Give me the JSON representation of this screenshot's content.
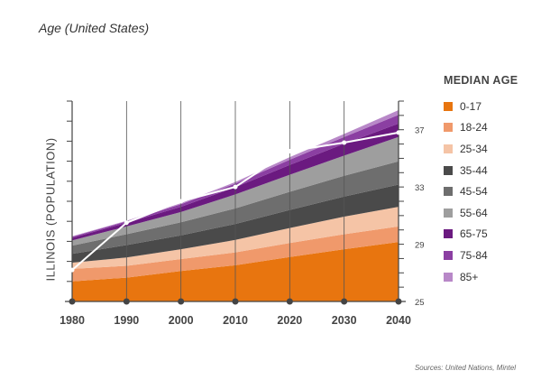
{
  "chart_data": {
    "type": "area",
    "title": "Age (United States)",
    "ylabel": "ILLINOIS (POPULATION)",
    "x": [
      1980,
      1990,
      2000,
      2010,
      2020,
      2030,
      2040
    ],
    "x_tick_labels": [
      "1980",
      "1990",
      "2000",
      "2010",
      "2020",
      "2030",
      "2040"
    ],
    "stacked": true,
    "series": [
      {
        "name": "0-17",
        "color": "#e8750f",
        "values": [
          1.95,
          2.3,
          2.95,
          3.5,
          4.3,
          5.05,
          5.75
        ]
      },
      {
        "name": "18-24",
        "color": "#f0996b",
        "values": [
          1.2,
          1.15,
          1.15,
          1.25,
          1.35,
          1.45,
          1.5
        ]
      },
      {
        "name": "25-34",
        "color": "#f5c4a6",
        "values": [
          0.6,
          0.8,
          0.95,
          1.2,
          1.45,
          1.7,
          1.9
        ]
      },
      {
        "name": "35-44",
        "color": "#4a4a4a",
        "values": [
          0.85,
          1.2,
          1.35,
          1.55,
          1.75,
          1.95,
          2.15
        ]
      },
      {
        "name": "45-54",
        "color": "#6e6e6e",
        "values": [
          0.8,
          1.05,
          1.25,
          1.5,
          1.75,
          2.0,
          2.25
        ]
      },
      {
        "name": "55-64",
        "color": "#9e9e9e",
        "values": [
          0.5,
          0.75,
          1.0,
          1.35,
          1.65,
          1.95,
          2.35
        ]
      },
      {
        "name": "65-75",
        "color": "#6b1a80",
        "values": [
          0.25,
          0.35,
          0.5,
          0.7,
          0.95,
          1.15,
          1.3
        ]
      },
      {
        "name": "75-84",
        "color": "#8b3fa2",
        "values": [
          0.1,
          0.15,
          0.25,
          0.35,
          0.5,
          0.65,
          0.85
        ]
      },
      {
        "name": "85+",
        "color": "#b888c8",
        "values": [
          0.05,
          0.05,
          0.1,
          0.15,
          0.25,
          0.3,
          0.45
        ]
      }
    ],
    "median_age": {
      "name": "MEDIAN AGE",
      "values": [
        27.2,
        30.5,
        32.0,
        33.0,
        35.5,
        36.1,
        36.8
      ],
      "ylim": [
        25,
        39
      ],
      "ticks": [
        25,
        29,
        33,
        37
      ],
      "color": "#ffffff"
    },
    "grid": true,
    "legend_position": "right"
  },
  "legend": {
    "title": "MEDIAN AGE"
  },
  "source": "Sources: United Nations, Mintel"
}
